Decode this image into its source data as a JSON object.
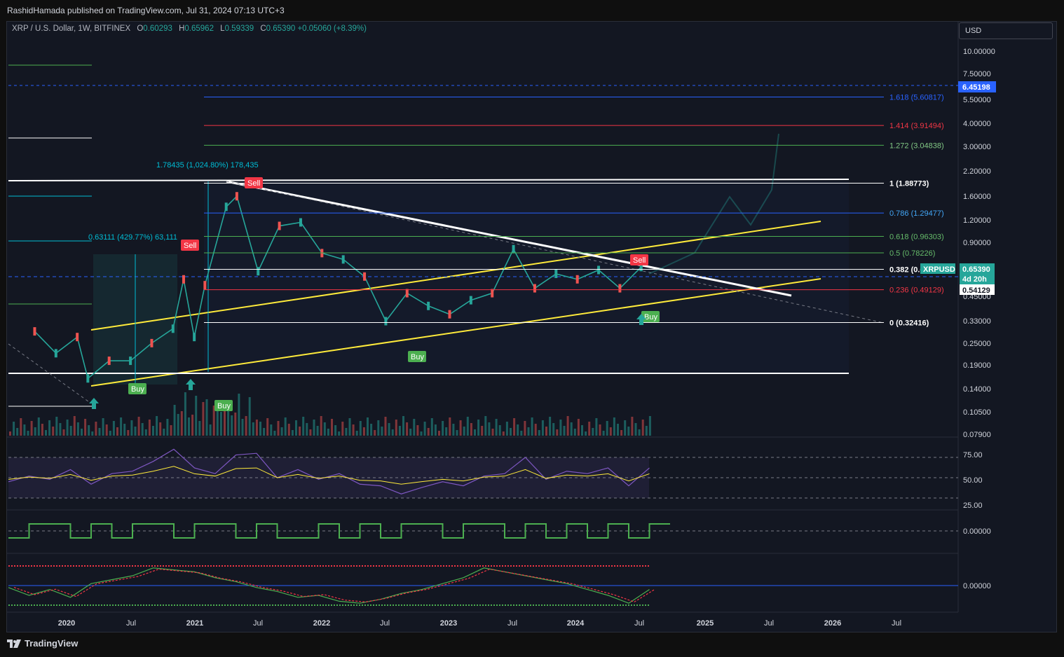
{
  "publisher": {
    "text": "RashidHamada published on TradingView.com, Jul 31, 2024 07:13 UTC+3"
  },
  "legend": {
    "symbol": "XRP / U.S. Dollar, 1W, BITFINEX",
    "o_label": "O",
    "o": "0.60293",
    "h_label": "H",
    "h": "0.65962",
    "l_label": "L",
    "l": "0.59339",
    "c_label": "C",
    "c": "0.65390",
    "change": "+0.05060 (+8.39%)"
  },
  "currency_button": "USD",
  "footer": {
    "brand": "TradingView"
  },
  "colors": {
    "bg": "#131722",
    "up": "#26a69a",
    "down": "#ef5350",
    "yellow": "#ffeb3b",
    "white": "#ffffff",
    "green": "#4caf50",
    "red": "#f23645",
    "fib_blue": "#2962ff",
    "rsi": "#7e57c2"
  },
  "chart_data": [
    {
      "type": "line",
      "title": "XRP / U.S. Dollar, 1W, BITFINEX",
      "scale": "log",
      "x_ticks": [
        "2020",
        "Jul",
        "2021",
        "Jul",
        "2022",
        "Jul",
        "2023",
        "Jul",
        "2024",
        "Jul",
        "2025",
        "Jul",
        "2026",
        "Jul"
      ],
      "y_ticks": [
        "10.00000",
        "7.50000",
        "5.50000",
        "4.00000",
        "3.00000",
        "2.20000",
        "1.60000",
        "1.20000",
        "0.90000",
        "0.45000",
        "0.33000",
        "0.25000",
        "0.19000",
        "0.14000",
        "0.10500",
        "0.07900"
      ],
      "ylim": [
        0.079,
        12.5
      ],
      "series": [
        {
          "x": [
            "2019-10",
            "2019-12",
            "2020-02",
            "2020-03",
            "2020-05",
            "2020-07",
            "2020-09",
            "2020-11",
            "2020-12",
            "2021-01",
            "2021-02",
            "2021-04",
            "2021-05",
            "2021-07",
            "2021-09",
            "2021-11",
            "2022-01",
            "2022-03",
            "2022-05",
            "2022-07",
            "2022-09",
            "2022-11",
            "2023-01",
            "2023-03",
            "2023-05",
            "2023-07",
            "2023-09",
            "2023-11",
            "2024-01",
            "2024-03",
            "2024-05",
            "2024-07"
          ],
          "values": [
            0.29,
            0.22,
            0.27,
            0.16,
            0.2,
            0.2,
            0.25,
            0.3,
            0.56,
            0.27,
            0.52,
            1.4,
            1.6,
            0.62,
            1.1,
            1.15,
            0.78,
            0.72,
            0.58,
            0.33,
            0.47,
            0.4,
            0.36,
            0.43,
            0.47,
            0.82,
            0.5,
            0.6,
            0.56,
            0.63,
            0.5,
            0.6539
          ]
        }
      ],
      "fib_levels": [
        {
          "label": "1.618 (5.60817)",
          "value": 5.60817
        },
        {
          "label": "1.414 (3.91494)",
          "value": 3.91494
        },
        {
          "label": "1.272 (3.04838)",
          "value": 3.04838
        },
        {
          "label": "1 (1.88773)",
          "value": 1.88773
        },
        {
          "label": "0.786 (1.29477)",
          "value": 1.29477
        },
        {
          "label": "0.618 (0.96303)",
          "value": 0.96303
        },
        {
          "label": "0.5 (0.78226)",
          "value": 0.78226
        },
        {
          "label": "0.382 (0.63541)",
          "value": 0.63541
        },
        {
          "label": "0.236 (0.49129)",
          "value": 0.49129
        },
        {
          "label": "0 (0.32416)",
          "value": 0.32416
        }
      ],
      "annotations": [
        {
          "text": "1.78435 (1,024.80%) 178,435"
        },
        {
          "text": "0.63111 (429.77%) 63,111"
        }
      ],
      "signals": [
        {
          "text": "Sell",
          "kind": "sell"
        },
        {
          "text": "Sell",
          "kind": "sell"
        },
        {
          "text": "Sell",
          "kind": "sell"
        },
        {
          "text": "Buy",
          "kind": "buy"
        },
        {
          "text": "Buy",
          "kind": "buy"
        },
        {
          "text": "Buy",
          "kind": "buy"
        },
        {
          "text": "Buy",
          "kind": "buy"
        }
      ],
      "price_tags": [
        {
          "text": "6.45198",
          "color": "#2962ff"
        },
        {
          "text": "XRPUSD",
          "color": "#26a69a"
        },
        {
          "text": "0.65390",
          "color": "#26a69a"
        },
        {
          "text": "4d 20h",
          "color": "#26a69a"
        },
        {
          "text": "0.54129",
          "color": "#ffffff"
        }
      ]
    },
    {
      "type": "line",
      "y_ticks": [
        "75.00",
        "50.00",
        "25.00"
      ],
      "ylim": [
        15,
        90
      ],
      "series": [
        {
          "values": [
            45,
            52,
            48,
            60,
            42,
            55,
            58,
            70,
            85,
            62,
            55,
            78,
            80,
            50,
            60,
            48,
            55,
            42,
            40,
            30,
            38,
            45,
            40,
            52,
            55,
            75,
            48,
            58,
            55,
            62,
            40,
            62
          ]
        }
      ]
    },
    {
      "type": "line",
      "y_ticks": [
        "0.00000"
      ],
      "series": [
        {
          "values": [
            0,
            1,
            1,
            0,
            1,
            0,
            1,
            1,
            0,
            1,
            1,
            0,
            1,
            0,
            0,
            1,
            0,
            1,
            0,
            1,
            1,
            0,
            1,
            1,
            0,
            1,
            0,
            1,
            0,
            1,
            0,
            1
          ]
        }
      ]
    },
    {
      "type": "line",
      "y_ticks": [
        "0.00000"
      ],
      "series": [
        {
          "values": [
            -0.1,
            -0.5,
            -0.2,
            -0.6,
            0.1,
            0.3,
            0.5,
            0.9,
            0.8,
            0.7,
            0.4,
            0.2,
            -0.1,
            -0.3,
            -0.6,
            -0.5,
            -0.8,
            -0.9,
            -0.7,
            -0.4,
            -0.2,
            0.1,
            0.4,
            0.9,
            0.7,
            0.5,
            0.3,
            0.1,
            -0.2,
            -0.5,
            -0.9,
            -0.2
          ]
        }
      ]
    }
  ]
}
